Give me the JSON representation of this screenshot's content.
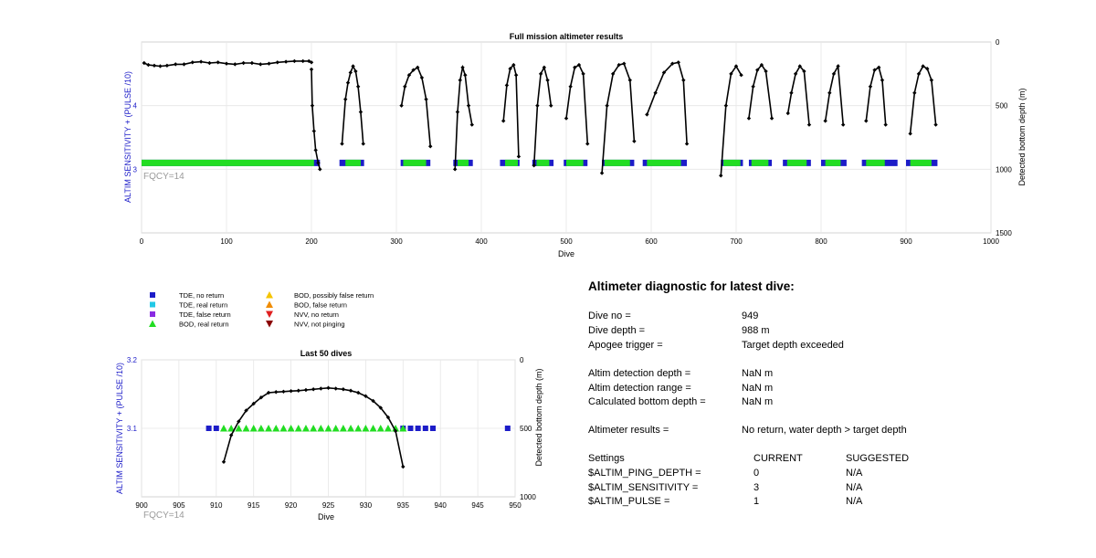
{
  "top_chart": {
    "title": "Full mission altimeter results",
    "xlabel": "Dive",
    "ylabel_left": "ALTIM SENSITIVITY + (PULSE /10)",
    "ylabel_right": "Detected bottom depth (m)",
    "fqcy_label": "FQCY=14",
    "x_ticks": [
      "0",
      "100",
      "200",
      "300",
      "400",
      "500",
      "600",
      "700",
      "800",
      "900",
      "1000"
    ],
    "left_ticks": [
      "4",
      "3"
    ],
    "right_ticks": [
      "0",
      "500",
      "1000",
      "1500"
    ]
  },
  "bottom_chart": {
    "title": "Last 50 dives",
    "xlabel": "Dive",
    "ylabel_left": "ALTIM SENSITIVITY + (PULSE /10)",
    "ylabel_right": "Detected bottom depth (m)",
    "fqcy_label": "FQCY=14",
    "x_ticks": [
      "900",
      "905",
      "910",
      "915",
      "920",
      "925",
      "930",
      "935",
      "940",
      "945",
      "950"
    ],
    "left_ticks": [
      "3.2",
      "3.1"
    ],
    "right_ticks": [
      "0",
      "500",
      "1000"
    ]
  },
  "legend": [
    {
      "label": "TDE, no return",
      "marker": "square",
      "color": "#1c1cc8"
    },
    {
      "label": "TDE, real return",
      "marker": "square",
      "color": "#22c8e6"
    },
    {
      "label": "TDE, false return",
      "marker": "square",
      "color": "#8a2be2"
    },
    {
      "label": "BOD, real return",
      "marker": "triangle-up",
      "color": "#22dd22"
    },
    {
      "label": "BOD, possibly false return",
      "marker": "triangle-up",
      "color": "#f5c400"
    },
    {
      "label": "BOD, false return",
      "marker": "triangle-up",
      "color": "#f08c00"
    },
    {
      "label": "NVV, no return",
      "marker": "triangle-down",
      "color": "#e02020"
    },
    {
      "label": "NVV, not pinging",
      "marker": "triangle-down",
      "color": "#8b0000"
    }
  ],
  "diagnostic": {
    "title": "Altimeter diagnostic for latest dive:",
    "dive_no_label": "Dive no =",
    "dive_no_value": "949",
    "dive_depth_label": "Dive depth =",
    "dive_depth_value": "988 m",
    "apogee_label": "Apogee trigger =",
    "apogee_value": "Target depth exceeded",
    "altim_det_depth_label": "Altim detection depth =",
    "altim_det_depth_value": "NaN m",
    "altim_det_range_label": "Altim detection range =",
    "altim_det_range_value": "NaN m",
    "calc_bottom_label": "Calculated bottom depth =",
    "calc_bottom_value": "NaN m",
    "results_label": "Altimeter results =",
    "results_value": "No return, water depth > target depth",
    "settings_label": "Settings",
    "current_label": "CURRENT",
    "suggested_label": "SUGGESTED",
    "settings": [
      {
        "name": "$ALTIM_PING_DEPTH =",
        "current": "0",
        "suggested": "N/A"
      },
      {
        "name": "$ALTIM_SENSITIVITY =",
        "current": "3",
        "suggested": "N/A"
      },
      {
        "name": "$ALTIM_PULSE =",
        "current": "1",
        "suggested": "N/A"
      }
    ]
  },
  "chart_data": [
    {
      "type": "scatter",
      "title": "Full mission altimeter results",
      "xlabel": "Dive",
      "ylabel": "ALTIM SENSITIVITY + (PULSE /10)",
      "y2label": "Detected bottom depth (m)",
      "xlim": [
        0,
        1000
      ],
      "ylim": [
        2,
        5
      ],
      "y2lim": [
        1500,
        0
      ],
      "grid": true,
      "sensitivity_level": 3.1,
      "tde_no_return_ranges": [
        [
          0,
          210
        ],
        [
          233,
          262
        ],
        [
          305,
          340
        ],
        [
          367,
          390
        ],
        [
          422,
          445
        ],
        [
          460,
          485
        ],
        [
          497,
          525
        ],
        [
          542,
          580
        ],
        [
          590,
          642
        ],
        [
          682,
          708
        ],
        [
          715,
          742
        ],
        [
          755,
          788
        ],
        [
          800,
          830
        ],
        [
          848,
          890
        ],
        [
          900,
          937
        ]
      ],
      "bod_real_return_ranges": [
        [
          0,
          203
        ],
        [
          240,
          258
        ],
        [
          308,
          335
        ],
        [
          372,
          385
        ],
        [
          428,
          443
        ],
        [
          465,
          480
        ],
        [
          500,
          520
        ],
        [
          545,
          575
        ],
        [
          595,
          635
        ],
        [
          685,
          705
        ],
        [
          718,
          738
        ],
        [
          760,
          783
        ],
        [
          805,
          823
        ],
        [
          853,
          875
        ],
        [
          905,
          930
        ]
      ],
      "depth_series": [
        {
          "x": [
            3,
            8,
            15,
            22,
            30,
            40,
            50,
            60,
            70,
            80,
            90,
            100,
            110,
            120,
            130,
            140,
            150,
            160,
            170,
            180,
            190,
            197,
            200
          ],
          "y": [
            165,
            180,
            185,
            190,
            185,
            175,
            175,
            160,
            155,
            165,
            160,
            170,
            175,
            165,
            165,
            175,
            170,
            160,
            155,
            150,
            150,
            150,
            160
          ]
        },
        {
          "x": [
            200,
            201,
            203,
            205,
            208,
            210
          ],
          "y": [
            215,
            500,
            700,
            850,
            950,
            1000
          ]
        },
        {
          "x": [
            236,
            240,
            243,
            246,
            249,
            252,
            255,
            258,
            261
          ],
          "y": [
            800,
            450,
            320,
            240,
            190,
            230,
            350,
            550,
            800
          ]
        },
        {
          "x": [
            306,
            310,
            315,
            320,
            325,
            330,
            335,
            340
          ],
          "y": [
            500,
            350,
            260,
            220,
            200,
            280,
            450,
            820
          ]
        },
        {
          "x": [
            369,
            372,
            375,
            378,
            381,
            385,
            389
          ],
          "y": [
            1000,
            550,
            300,
            200,
            260,
            500,
            650
          ]
        },
        {
          "x": [
            426,
            430,
            434,
            438,
            441,
            444
          ],
          "y": [
            620,
            340,
            210,
            180,
            260,
            900
          ]
        },
        {
          "x": [
            462,
            466,
            470,
            474,
            478,
            482
          ],
          "y": [
            970,
            500,
            250,
            200,
            300,
            500
          ]
        },
        {
          "x": [
            500,
            505,
            510,
            515,
            520,
            525
          ],
          "y": [
            600,
            350,
            200,
            180,
            250,
            800
          ]
        },
        {
          "x": [
            542,
            548,
            555,
            562,
            568,
            575,
            580
          ],
          "y": [
            1030,
            500,
            250,
            180,
            170,
            300,
            780
          ]
        },
        {
          "x": [
            595,
            605,
            615,
            625,
            632,
            638,
            642
          ],
          "y": [
            570,
            400,
            240,
            170,
            160,
            300,
            800
          ]
        },
        {
          "x": [
            682,
            688,
            694,
            700,
            706
          ],
          "y": [
            1050,
            500,
            250,
            190,
            260
          ]
        },
        {
          "x": [
            715,
            720,
            725,
            730,
            735,
            742
          ],
          "y": [
            600,
            350,
            220,
            180,
            230,
            600
          ]
        },
        {
          "x": [
            761,
            765,
            770,
            775,
            780,
            786
          ],
          "y": [
            560,
            400,
            250,
            190,
            230,
            650
          ]
        },
        {
          "x": [
            805,
            810,
            815,
            820,
            826
          ],
          "y": [
            620,
            400,
            250,
            190,
            650
          ]
        },
        {
          "x": [
            853,
            858,
            863,
            868,
            872,
            876
          ],
          "y": [
            620,
            350,
            220,
            200,
            300,
            650
          ]
        },
        {
          "x": [
            905,
            910,
            915,
            920,
            925,
            930,
            935
          ],
          "y": [
            720,
            400,
            250,
            190,
            210,
            300,
            650
          ]
        }
      ]
    },
    {
      "type": "scatter",
      "title": "Last 50 dives",
      "xlabel": "Dive",
      "ylabel": "ALTIM SENSITIVITY + (PULSE /10)",
      "y2label": "Detected bottom depth (m)",
      "xlim": [
        900,
        950
      ],
      "ylim": [
        3.0,
        3.2
      ],
      "y2lim": [
        1000,
        0
      ],
      "grid": true,
      "tde_no_return": {
        "x": [
          909,
          910,
          935,
          936,
          937,
          938,
          939,
          949
        ],
        "y": 3.1
      },
      "bod_real_return": {
        "x": [
          911,
          912,
          913,
          914,
          915,
          916,
          917,
          918,
          919,
          920,
          921,
          922,
          923,
          924,
          925,
          926,
          927,
          928,
          929,
          930,
          931,
          932,
          933,
          934,
          935
        ],
        "y": 3.1
      },
      "depth_series": {
        "x": [
          911,
          912,
          913,
          914,
          915,
          916,
          917,
          918,
          919,
          920,
          921,
          922,
          923,
          924,
          925,
          926,
          927,
          928,
          929,
          930,
          931,
          932,
          933,
          934,
          935
        ],
        "y": [
          745,
          550,
          450,
          370,
          320,
          275,
          240,
          235,
          232,
          228,
          225,
          220,
          215,
          210,
          205,
          210,
          215,
          225,
          240,
          265,
          300,
          350,
          420,
          520,
          780
        ]
      }
    }
  ]
}
